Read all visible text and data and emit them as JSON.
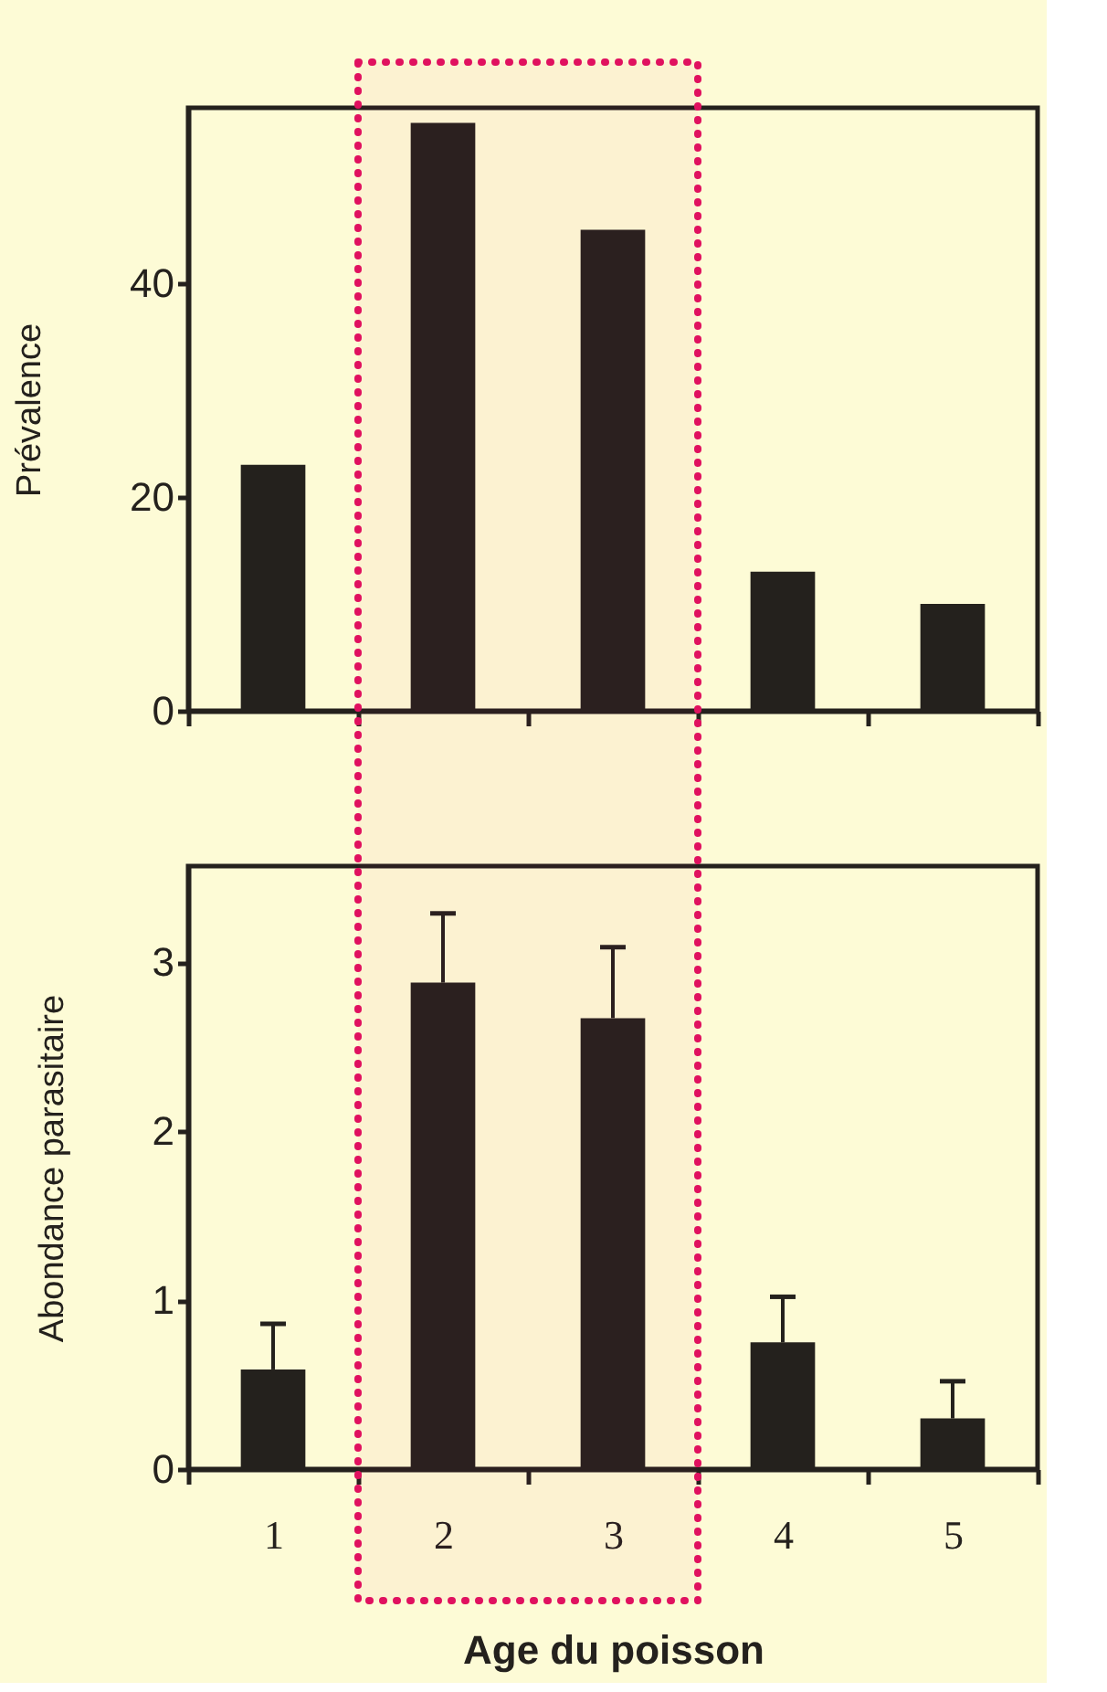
{
  "chart_data": [
    {
      "type": "bar",
      "ylabel": "Prévalence",
      "categories": [
        "1",
        "2",
        "3",
        "4",
        "5"
      ],
      "values": [
        23,
        55,
        45,
        13,
        10
      ],
      "color": "#24211d",
      "ylim": [
        0,
        56.4
      ],
      "yticks": [
        0,
        20,
        40
      ],
      "grid": false,
      "tick_labels": "y"
    },
    {
      "type": "bar",
      "ylabel": "Abondance parasitaire",
      "xlabel": "Age du poisson",
      "categories": [
        "1",
        "2",
        "3",
        "4",
        "5"
      ],
      "values": [
        0.59,
        2.88,
        2.67,
        0.75,
        0.3
      ],
      "errors": [
        [
          0.59,
          0.86
        ],
        [
          2.88,
          3.29
        ],
        [
          2.67,
          3.09
        ],
        [
          0.75,
          1.02
        ],
        [
          0.3,
          0.52
        ]
      ],
      "color": "#24211d",
      "ylim": [
        0,
        3.57
      ],
      "yticks": [
        0,
        1,
        2,
        3
      ],
      "grid": false,
      "bands": [
        {
          "axis": "x",
          "from": "2",
          "to": "3",
          "color": "#e0115f"
        }
      ]
    }
  ]
}
